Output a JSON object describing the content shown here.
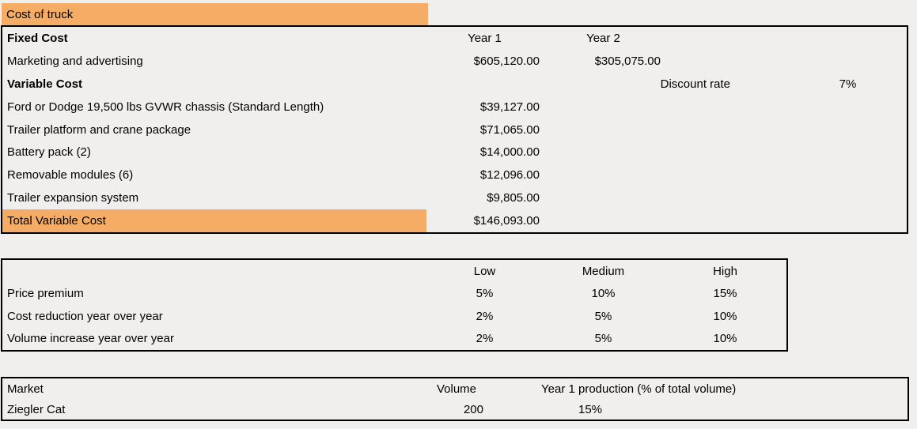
{
  "colors": {
    "highlight": "#F5AC64",
    "border": "#000000",
    "background": "#F1EFED",
    "text": "#000000"
  },
  "cost_sheet": {
    "title": "Cost of truck",
    "year1_header": "Year 1",
    "year2_header": "Year 2",
    "fixed_cost_label": "Fixed Cost",
    "marketing": {
      "label": "Marketing and advertising",
      "year1": "$605,120.00",
      "year2": "$305,075.00"
    },
    "variable_cost_label": "Variable Cost",
    "discount": {
      "label": "Discount rate",
      "value": "7%"
    },
    "items": [
      {
        "label": "Ford or Dodge 19,500 lbs GVWR chassis (Standard Length)",
        "year1": "$39,127.00"
      },
      {
        "label": "Trailer platform and crane package",
        "year1": "$71,065.00"
      },
      {
        "label": "Battery pack (2)",
        "year1": "$14,000.00"
      },
      {
        "label": "Removable modules (6)",
        "year1": "$12,096.00"
      },
      {
        "label": "Trailer expansion system",
        "year1": "$9,805.00"
      }
    ],
    "total": {
      "label": "Total Variable Cost",
      "year1": "$146,093.00"
    }
  },
  "scenario_table": {
    "low_header": "Low",
    "medium_header": "Medium",
    "high_header": "High",
    "rows": [
      {
        "label": "Price premium",
        "low": "5%",
        "medium": "10%",
        "high": "15%"
      },
      {
        "label": "Cost reduction year over year",
        "low": "2%",
        "medium": "5%",
        "high": "10%"
      },
      {
        "label": "Volume increase year over year",
        "low": "2%",
        "medium": "5%",
        "high": "10%"
      }
    ]
  },
  "market_table": {
    "market_header": "Market",
    "volume_header": "Volume",
    "production_header": "Year 1 production (% of total volume)",
    "rows": [
      {
        "market": "Ziegler Cat",
        "volume": "200",
        "production": "15%"
      }
    ]
  }
}
